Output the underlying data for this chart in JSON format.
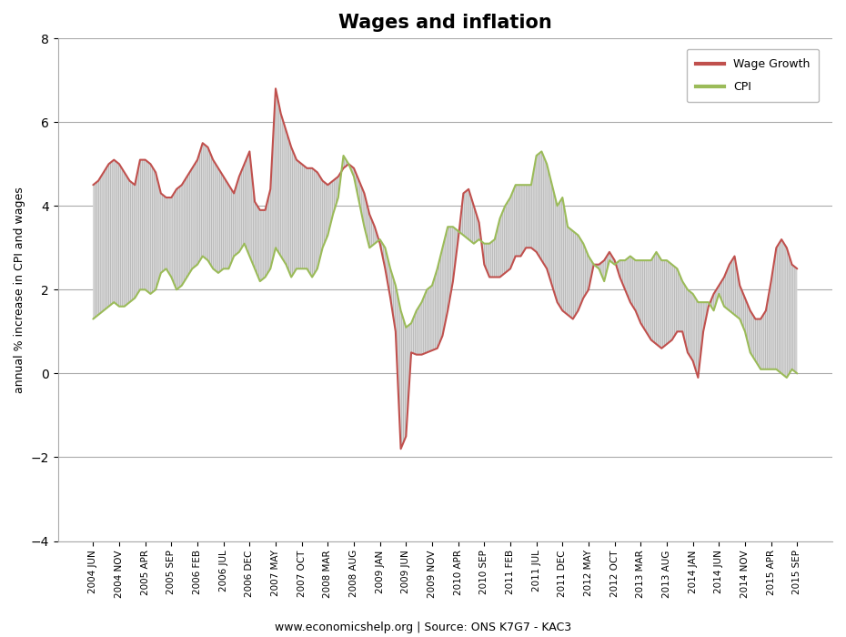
{
  "title": "Wages and inflation",
  "ylabel": "annual % increase in CPI and wages",
  "footnote": "www.economicshelp.org | Source: ONS K7G7 - KAC3",
  "ylim": [
    -4,
    8
  ],
  "yticks": [
    -4,
    -2,
    0,
    2,
    4,
    6,
    8
  ],
  "wage_color": "#C0504D",
  "cpi_color": "#9BBB59",
  "background_color": "#FFFFFF",
  "legend_wage": "Wage Growth",
  "legend_cpi": "CPI",
  "x_labels": [
    "2004 JUN",
    "2004 NOV",
    "2005 APR",
    "2005 SEP",
    "2006 FEB",
    "2006 JUL",
    "2006 DEC",
    "2007 MAY",
    "2007 OCT",
    "2008 MAR",
    "2008 AUG",
    "2009 JAN",
    "2009 JUN",
    "2009 NOV",
    "2010 APR",
    "2010 SEP",
    "2011 FEB",
    "2011 JUL",
    "2011 DEC",
    "2012 MAY",
    "2012 OCT",
    "2013 MAR",
    "2013 AUG",
    "2014 JAN",
    "2014 JUN",
    "2014 NOV",
    "2015 APR",
    "2015 SEP"
  ],
  "wage": [
    4.5,
    4.6,
    4.8,
    5.0,
    5.1,
    5.0,
    4.8,
    4.6,
    4.5,
    5.1,
    5.1,
    5.0,
    4.8,
    4.3,
    4.2,
    4.2,
    4.4,
    4.5,
    4.7,
    4.9,
    5.1,
    5.5,
    5.4,
    5.1,
    4.9,
    4.7,
    4.5,
    4.3,
    4.7,
    5.0,
    5.3,
    4.1,
    3.9,
    3.9,
    4.4,
    6.8,
    6.2,
    5.8,
    5.4,
    5.1,
    5.0,
    4.9,
    4.9,
    4.8,
    4.6,
    4.5,
    4.6,
    4.7,
    4.9,
    5.0,
    4.9,
    4.6,
    4.3,
    3.8,
    3.5,
    3.1,
    2.5,
    1.8,
    1.0,
    -1.8,
    -1.5,
    0.5,
    0.45,
    0.45,
    0.5,
    0.55,
    0.6,
    0.9,
    1.5,
    2.2,
    3.2,
    4.3,
    4.4,
    4.0,
    3.6,
    2.6,
    2.3,
    2.3,
    2.3,
    2.4,
    2.5,
    2.8,
    2.8,
    3.0,
    3.0,
    2.9,
    2.7,
    2.5,
    2.1,
    1.7,
    1.5,
    1.4,
    1.3,
    1.5,
    1.8,
    2.0,
    2.6,
    2.6,
    2.7,
    2.9,
    2.7,
    2.3,
    2.0,
    1.7,
    1.5,
    1.2,
    1.0,
    0.8,
    0.7,
    0.6,
    0.7,
    0.8,
    1.0,
    1.0,
    0.5,
    0.3,
    -0.1,
    1.0,
    1.6,
    1.9,
    2.1,
    2.3,
    2.6,
    2.8,
    2.1,
    1.8,
    1.5,
    1.3,
    1.3,
    1.5,
    2.2,
    3.0,
    3.2,
    3.0,
    2.6,
    2.5
  ],
  "cpi": [
    1.3,
    1.4,
    1.5,
    1.6,
    1.7,
    1.6,
    1.6,
    1.7,
    1.8,
    2.0,
    2.0,
    1.9,
    2.0,
    2.4,
    2.5,
    2.3,
    2.0,
    2.1,
    2.3,
    2.5,
    2.6,
    2.8,
    2.7,
    2.5,
    2.4,
    2.5,
    2.5,
    2.8,
    2.9,
    3.1,
    2.8,
    2.5,
    2.2,
    2.3,
    2.5,
    3.0,
    2.8,
    2.6,
    2.3,
    2.5,
    2.5,
    2.5,
    2.3,
    2.5,
    3.0,
    3.3,
    3.8,
    4.2,
    5.2,
    5.0,
    4.7,
    4.1,
    3.5,
    3.0,
    3.1,
    3.2,
    3.0,
    2.5,
    2.1,
    1.5,
    1.1,
    1.2,
    1.5,
    1.7,
    2.0,
    2.1,
    2.5,
    3.0,
    3.5,
    3.5,
    3.4,
    3.3,
    3.2,
    3.1,
    3.2,
    3.1,
    3.1,
    3.2,
    3.7,
    4.0,
    4.2,
    4.5,
    4.5,
    4.5,
    4.5,
    5.2,
    5.3,
    5.0,
    4.5,
    4.0,
    4.2,
    3.5,
    3.4,
    3.3,
    3.1,
    2.8,
    2.6,
    2.5,
    2.2,
    2.7,
    2.6,
    2.7,
    2.7,
    2.8,
    2.7,
    2.7,
    2.7,
    2.7,
    2.9,
    2.7,
    2.7,
    2.6,
    2.5,
    2.2,
    2.0,
    1.9,
    1.7,
    1.7,
    1.7,
    1.5,
    1.9,
    1.6,
    1.5,
    1.4,
    1.3,
    1.0,
    0.5,
    0.3,
    0.1,
    0.1,
    0.1,
    0.1,
    0.0,
    -0.1,
    0.1,
    0.0
  ]
}
